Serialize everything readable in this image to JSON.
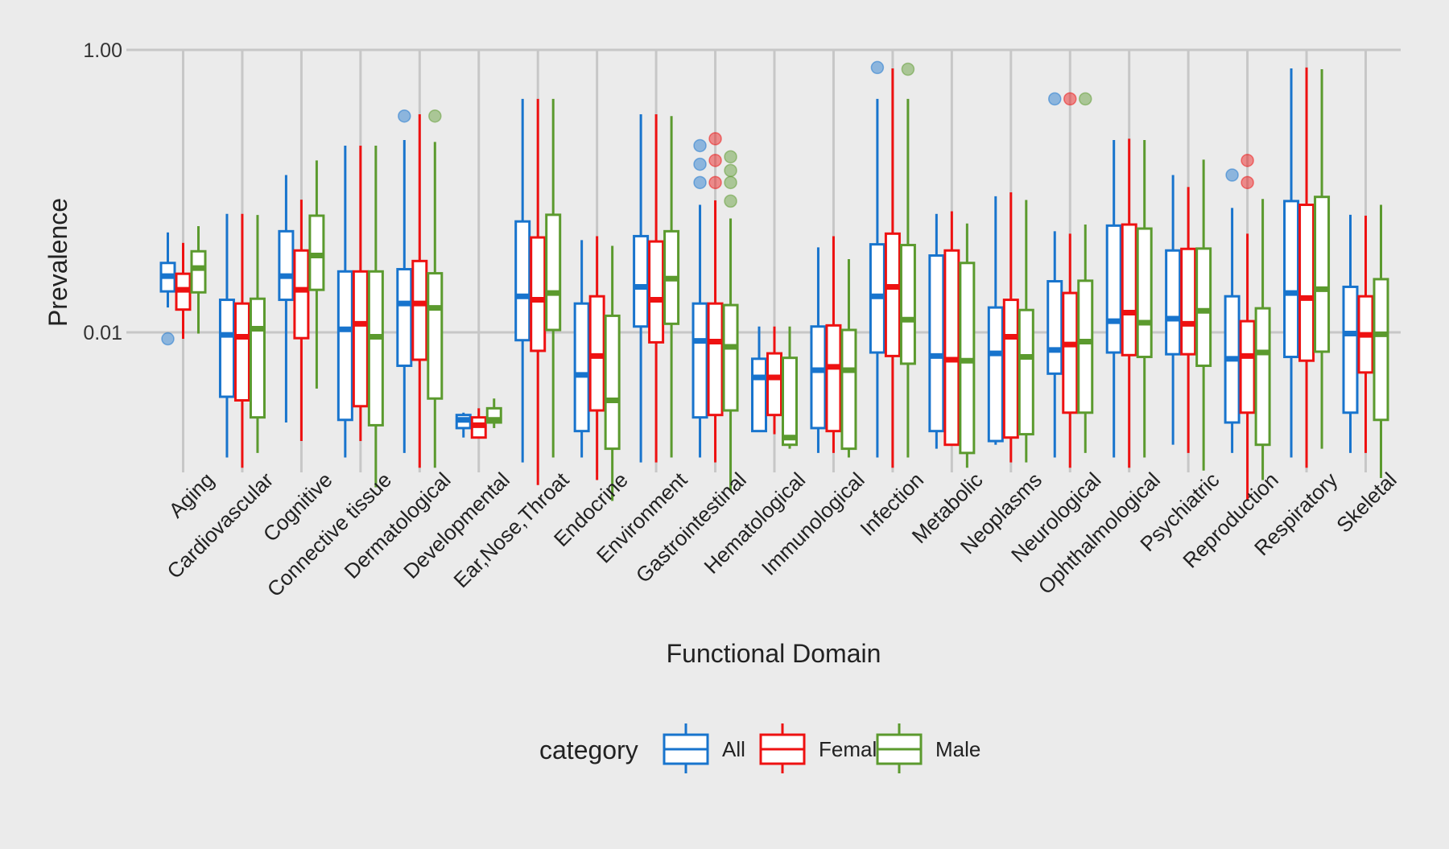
{
  "chart_data": {
    "type": "boxplot",
    "title": "",
    "xlabel": "Functional Domain",
    "ylabel": "Prevalence",
    "yscale": "log10",
    "ylim": [
      0.0007,
      1.4
    ],
    "yticks": [
      {
        "value": 1.0,
        "label": "1.00"
      },
      {
        "value": 0.01,
        "label": "0.01"
      }
    ],
    "grid": true,
    "legend": {
      "title": "category",
      "position": "bottom",
      "items": [
        {
          "name": "All",
          "color": "#1874CD"
        },
        {
          "name": "Female",
          "color": "#EE1111"
        },
        {
          "name": "Male",
          "color": "#5B9A2E"
        }
      ]
    },
    "categories": [
      "Aging",
      "Cardiovascular",
      "Cognitive",
      "Connective tissue",
      "Dermatological",
      "Developmental",
      "Ear,Nose,Throat",
      "Endocrine",
      "Environment",
      "Gastrointestinal",
      "Hematological",
      "Immunological",
      "Infection",
      "Metabolic",
      "Neoplasms",
      "Neurological",
      "Ophthalmological",
      "Psychiatric",
      "Reproduction",
      "Respiratory",
      "Skeletal"
    ],
    "series": [
      {
        "name": "All",
        "color": "#1874CD",
        "boxes": [
          {
            "lo": 0.015,
            "q1": 0.0195,
            "med": 0.025,
            "q3": 0.031,
            "hi": 0.051,
            "out": [
              0.009
            ]
          },
          {
            "lo": 0.0013,
            "q1": 0.0035,
            "med": 0.0096,
            "q3": 0.017,
            "hi": 0.069,
            "out": []
          },
          {
            "lo": 0.0023,
            "q1": 0.017,
            "med": 0.025,
            "q3": 0.052,
            "hi": 0.13,
            "out": []
          },
          {
            "lo": 0.0013,
            "q1": 0.0024,
            "med": 0.0105,
            "q3": 0.027,
            "hi": 0.21,
            "out": []
          },
          {
            "lo": 0.0014,
            "q1": 0.0058,
            "med": 0.016,
            "q3": 0.028,
            "hi": 0.23,
            "out": [
              0.34
            ]
          },
          {
            "lo": 0.0018,
            "q1": 0.0021,
            "med": 0.0024,
            "q3": 0.0026,
            "hi": 0.0027,
            "out": []
          },
          {
            "lo": 0.0012,
            "q1": 0.0088,
            "med": 0.018,
            "q3": 0.061,
            "hi": 0.45,
            "out": []
          },
          {
            "lo": 0.0013,
            "q1": 0.002,
            "med": 0.005,
            "q3": 0.016,
            "hi": 0.045,
            "out": []
          },
          {
            "lo": 0.0012,
            "q1": 0.011,
            "med": 0.021,
            "q3": 0.048,
            "hi": 0.35,
            "out": []
          },
          {
            "lo": 0.0013,
            "q1": 0.0025,
            "med": 0.0087,
            "q3": 0.016,
            "hi": 0.08,
            "out": [
              0.21,
              0.155,
              0.115
            ]
          },
          {
            "lo": 0.002,
            "q1": 0.002,
            "med": 0.0048,
            "q3": 0.0065,
            "hi": 0.011,
            "out": []
          },
          {
            "lo": 0.0014,
            "q1": 0.0021,
            "med": 0.0054,
            "q3": 0.011,
            "hi": 0.04,
            "out": []
          },
          {
            "lo": 0.0013,
            "q1": 0.0072,
            "med": 0.018,
            "q3": 0.042,
            "hi": 0.45,
            "out": [
              0.75
            ]
          },
          {
            "lo": 0.0015,
            "q1": 0.002,
            "med": 0.0068,
            "q3": 0.035,
            "hi": 0.069,
            "out": []
          },
          {
            "lo": 0.0016,
            "q1": 0.0017,
            "med": 0.0071,
            "q3": 0.015,
            "hi": 0.092,
            "out": []
          },
          {
            "lo": 0.0013,
            "q1": 0.0051,
            "med": 0.0075,
            "q3": 0.023,
            "hi": 0.052,
            "out": [
              0.45
            ]
          },
          {
            "lo": 0.0013,
            "q1": 0.0072,
            "med": 0.012,
            "q3": 0.057,
            "hi": 0.23,
            "out": []
          },
          {
            "lo": 0.0016,
            "q1": 0.007,
            "med": 0.0125,
            "q3": 0.038,
            "hi": 0.13,
            "out": []
          },
          {
            "lo": 0.0014,
            "q1": 0.0023,
            "med": 0.0065,
            "q3": 0.018,
            "hi": 0.076,
            "out": [
              0.13
            ]
          },
          {
            "lo": 0.0013,
            "q1": 0.0067,
            "med": 0.019,
            "q3": 0.085,
            "hi": 0.74,
            "out": []
          },
          {
            "lo": 0.0014,
            "q1": 0.0027,
            "med": 0.0098,
            "q3": 0.021,
            "hi": 0.068,
            "out": []
          }
        ]
      },
      {
        "name": "Female",
        "color": "#EE1111",
        "boxes": [
          {
            "lo": 0.009,
            "q1": 0.0145,
            "med": 0.02,
            "q3": 0.026,
            "hi": 0.043,
            "out": []
          },
          {
            "lo": 0.0011,
            "q1": 0.0033,
            "med": 0.0093,
            "q3": 0.016,
            "hi": 0.069,
            "out": []
          },
          {
            "lo": 0.0017,
            "q1": 0.0091,
            "med": 0.02,
            "q3": 0.038,
            "hi": 0.087,
            "out": []
          },
          {
            "lo": 0.0017,
            "q1": 0.003,
            "med": 0.0115,
            "q3": 0.027,
            "hi": 0.21,
            "out": []
          },
          {
            "lo": 0.0011,
            "q1": 0.0064,
            "med": 0.016,
            "q3": 0.032,
            "hi": 0.35,
            "out": []
          },
          {
            "lo": 0.0018,
            "q1": 0.0018,
            "med": 0.0022,
            "q3": 0.0025,
            "hi": 0.0029,
            "out": []
          },
          {
            "lo": 0.00083,
            "q1": 0.0074,
            "med": 0.017,
            "q3": 0.047,
            "hi": 0.45,
            "out": []
          },
          {
            "lo": 0.0009,
            "q1": 0.0028,
            "med": 0.0068,
            "q3": 0.018,
            "hi": 0.048,
            "out": []
          },
          {
            "lo": 0.0012,
            "q1": 0.0085,
            "med": 0.017,
            "q3": 0.044,
            "hi": 0.35,
            "out": []
          },
          {
            "lo": 0.0012,
            "q1": 0.0026,
            "med": 0.0086,
            "q3": 0.016,
            "hi": 0.086,
            "out": [
              0.235,
              0.165,
              0.115
            ]
          },
          {
            "lo": 0.0019,
            "q1": 0.0026,
            "med": 0.0048,
            "q3": 0.0071,
            "hi": 0.011,
            "out": []
          },
          {
            "lo": 0.0014,
            "q1": 0.002,
            "med": 0.0057,
            "q3": 0.0112,
            "hi": 0.048,
            "out": []
          },
          {
            "lo": 0.0011,
            "q1": 0.0068,
            "med": 0.021,
            "q3": 0.05,
            "hi": 0.74,
            "out": []
          },
          {
            "lo": 0.0016,
            "q1": 0.0016,
            "med": 0.0064,
            "q3": 0.038,
            "hi": 0.072,
            "out": []
          },
          {
            "lo": 0.0012,
            "q1": 0.0018,
            "med": 0.0093,
            "q3": 0.017,
            "hi": 0.098,
            "out": []
          },
          {
            "lo": 0.0011,
            "q1": 0.0027,
            "med": 0.0082,
            "q3": 0.019,
            "hi": 0.05,
            "out": [
              0.45
            ]
          },
          {
            "lo": 0.0011,
            "q1": 0.0069,
            "med": 0.0138,
            "q3": 0.058,
            "hi": 0.235,
            "out": []
          },
          {
            "lo": 0.0014,
            "q1": 0.007,
            "med": 0.0115,
            "q3": 0.039,
            "hi": 0.107,
            "out": []
          },
          {
            "lo": 0.00065,
            "q1": 0.0027,
            "med": 0.0068,
            "q3": 0.012,
            "hi": 0.05,
            "out": [
              0.165,
              0.115
            ]
          },
          {
            "lo": 0.0011,
            "q1": 0.0063,
            "med": 0.0175,
            "q3": 0.08,
            "hi": 0.75,
            "out": []
          },
          {
            "lo": 0.0014,
            "q1": 0.0052,
            "med": 0.0096,
            "q3": 0.018,
            "hi": 0.067,
            "out": []
          }
        ]
      },
      {
        "name": "Male",
        "color": "#5B9A2E",
        "boxes": [
          {
            "lo": 0.0098,
            "q1": 0.0192,
            "med": 0.0285,
            "q3": 0.0375,
            "hi": 0.0565,
            "out": []
          },
          {
            "lo": 0.0014,
            "q1": 0.0025,
            "med": 0.0106,
            "q3": 0.0173,
            "hi": 0.0678,
            "out": []
          },
          {
            "lo": 0.004,
            "q1": 0.02,
            "med": 0.035,
            "q3": 0.067,
            "hi": 0.165,
            "out": []
          },
          {
            "lo": 0.0008,
            "q1": 0.0022,
            "med": 0.0093,
            "q3": 0.027,
            "hi": 0.21,
            "out": []
          },
          {
            "lo": 0.0011,
            "q1": 0.0034,
            "med": 0.0149,
            "q3": 0.0262,
            "hi": 0.223,
            "out": [
              0.34
            ]
          },
          {
            "lo": 0.0021,
            "q1": 0.0023,
            "med": 0.0024,
            "q3": 0.0029,
            "hi": 0.0034,
            "out": []
          },
          {
            "lo": 0.0013,
            "q1": 0.0104,
            "med": 0.019,
            "q3": 0.068,
            "hi": 0.45,
            "out": []
          },
          {
            "lo": 0.00064,
            "q1": 0.0015,
            "med": 0.0033,
            "q3": 0.0131,
            "hi": 0.041,
            "out": []
          },
          {
            "lo": 0.0013,
            "q1": 0.0115,
            "med": 0.024,
            "q3": 0.052,
            "hi": 0.34,
            "out": []
          },
          {
            "lo": 0.00076,
            "q1": 0.0028,
            "med": 0.0079,
            "q3": 0.0156,
            "hi": 0.064,
            "out": [
              0.175,
              0.14,
              0.115,
              0.085
            ]
          },
          {
            "lo": 0.0015,
            "q1": 0.0016,
            "med": 0.0018,
            "q3": 0.0066,
            "hi": 0.011,
            "out": []
          },
          {
            "lo": 0.0013,
            "q1": 0.0015,
            "med": 0.0054,
            "q3": 0.0104,
            "hi": 0.033,
            "out": []
          },
          {
            "lo": 0.0013,
            "q1": 0.006,
            "med": 0.0123,
            "q3": 0.0415,
            "hi": 0.45,
            "out": [
              0.73
            ]
          },
          {
            "lo": 0.0011,
            "q1": 0.0014,
            "med": 0.0063,
            "q3": 0.031,
            "hi": 0.059,
            "out": []
          },
          {
            "lo": 0.0012,
            "q1": 0.0019,
            "med": 0.0067,
            "q3": 0.0144,
            "hi": 0.0865,
            "out": []
          },
          {
            "lo": 0.0014,
            "q1": 0.0027,
            "med": 0.0086,
            "q3": 0.0232,
            "hi": 0.058,
            "out": [
              0.45
            ]
          },
          {
            "lo": 0.0013,
            "q1": 0.0067,
            "med": 0.0117,
            "q3": 0.0543,
            "hi": 0.23,
            "out": []
          },
          {
            "lo": 0.00105,
            "q1": 0.0058,
            "med": 0.0142,
            "q3": 0.0392,
            "hi": 0.167,
            "out": []
          },
          {
            "lo": 0.0009,
            "q1": 0.0016,
            "med": 0.0072,
            "q3": 0.0148,
            "hi": 0.088,
            "out": []
          },
          {
            "lo": 0.0015,
            "q1": 0.0073,
            "med": 0.0202,
            "q3": 0.091,
            "hi": 0.73,
            "out": []
          },
          {
            "lo": 0.00093,
            "q1": 0.0024,
            "med": 0.0097,
            "q3": 0.0238,
            "hi": 0.08,
            "out": []
          }
        ]
      }
    ]
  }
}
